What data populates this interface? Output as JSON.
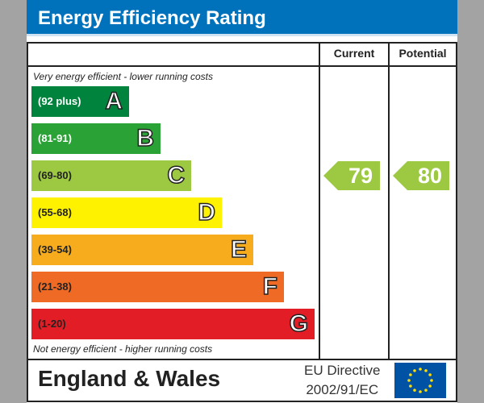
{
  "chart_data": {
    "type": "bar",
    "title": "Energy Efficiency Rating",
    "columns": [
      "Current",
      "Potential"
    ],
    "top_note": "Very energy efficient - lower running costs",
    "bottom_note": "Not energy efficient - higher running costs",
    "bands": [
      {
        "letter": "A",
        "range": "(92 plus)",
        "color": "#00843d",
        "text": "#fff"
      },
      {
        "letter": "B",
        "range": "(81-91)",
        "color": "#2aa236",
        "text": "#fff"
      },
      {
        "letter": "C",
        "range": "(69-80)",
        "color": "#9cc941",
        "text": "#222"
      },
      {
        "letter": "D",
        "range": "(55-68)",
        "color": "#fff200",
        "text": "#222"
      },
      {
        "letter": "E",
        "range": "(39-54)",
        "color": "#f6ac1c",
        "text": "#222"
      },
      {
        "letter": "F",
        "range": "(21-38)",
        "color": "#ef6a25",
        "text": "#222"
      },
      {
        "letter": "G",
        "range": "(1-20)",
        "color": "#e31d25",
        "text": "#222"
      }
    ],
    "current": {
      "value": "79",
      "band": "C",
      "color": "#9cc941"
    },
    "potential": {
      "value": "80",
      "band": "C",
      "color": "#9cc941"
    }
  },
  "footer": {
    "country": "England & Wales",
    "directive_line1": "EU Directive",
    "directive_line2": "2002/91/EC"
  }
}
